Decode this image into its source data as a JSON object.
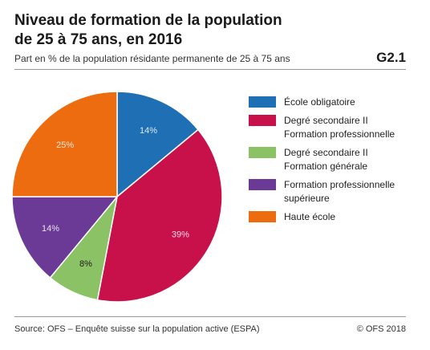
{
  "header": {
    "title_line1": "Niveau de formation de la population",
    "title_line2": "de 25 à 75 ans, en 2016",
    "subtitle": "Part en % de la population résidante permanente de 25 à 75 ans",
    "code": "G2.1"
  },
  "footer": {
    "source": "Source: OFS – Enquête suisse sur la population active (ESPA)",
    "copyright": "© OFS 2018"
  },
  "chart_data": {
    "type": "pie",
    "title": "Niveau de formation de la population de 25 à 75 ans, en 2016",
    "subtitle": "Part en % de la population résidante permanente de 25 à 75 ans",
    "legend_position": "right",
    "slices": [
      {
        "label_lines": [
          "École obligatoire"
        ],
        "value": 14,
        "value_label": "14%",
        "color": "#1f6fb4"
      },
      {
        "label_lines": [
          "Degré secondaire II",
          "Formation professionnelle"
        ],
        "value": 39,
        "value_label": "39%",
        "color": "#c8104b"
      },
      {
        "label_lines": [
          "Degré secondaire II",
          "Formation générale"
        ],
        "value": 8,
        "value_label": "8%",
        "color": "#8cc266"
      },
      {
        "label_lines": [
          "Formation professionnelle",
          "supérieure"
        ],
        "value": 14,
        "value_label": "14%",
        "color": "#6a3a96"
      },
      {
        "label_lines": [
          "Haute école"
        ],
        "value": 25,
        "value_label": "25%",
        "color": "#ee6c10"
      }
    ]
  }
}
